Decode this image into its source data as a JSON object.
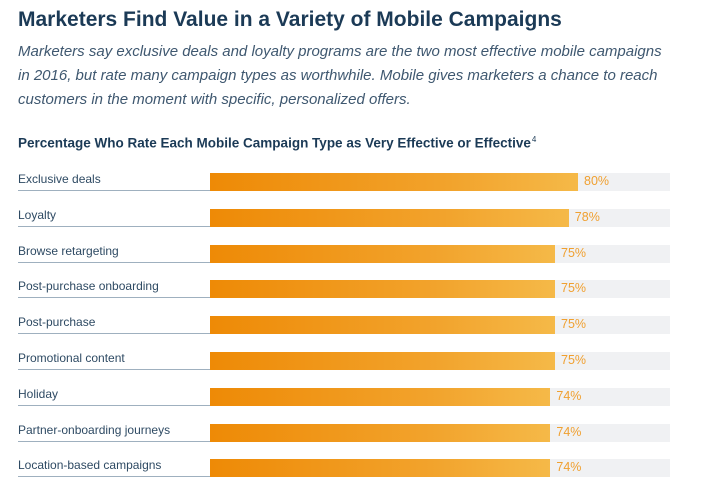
{
  "header": {
    "title": "Marketers Find Value in a Variety of Mobile Campaigns",
    "subtitle": "Marketers say exclusive deals and loyalty programs are the two most effective mobile campaigns in 2016, but rate many campaign types as worthwhile. Mobile gives marketers a chance to reach customers in the moment with specific, personalized offers."
  },
  "chart_data": {
    "type": "bar",
    "orientation": "horizontal",
    "title": "Percentage Who Rate Each Mobile Campaign Type as Very Effective or Effective",
    "title_footnote": "4",
    "categories": [
      "Exclusive deals",
      "Loyalty",
      "Browse retargeting",
      "Post-purchase onboarding",
      "Post-purchase",
      "Promotional content",
      "Holiday",
      "Partner-onboarding journeys",
      "Location-based campaigns"
    ],
    "values": [
      80,
      78,
      75,
      75,
      75,
      75,
      74,
      74,
      74
    ],
    "value_labels": [
      "80%",
      "78%",
      "75%",
      "75%",
      "75%",
      "75%",
      "74%",
      "74%",
      "74%"
    ],
    "unit": "%",
    "xlim": [
      0,
      100
    ],
    "bar_color": "#f0960f",
    "track_color": "#f0f1f3",
    "value_color": "#f0a030"
  }
}
